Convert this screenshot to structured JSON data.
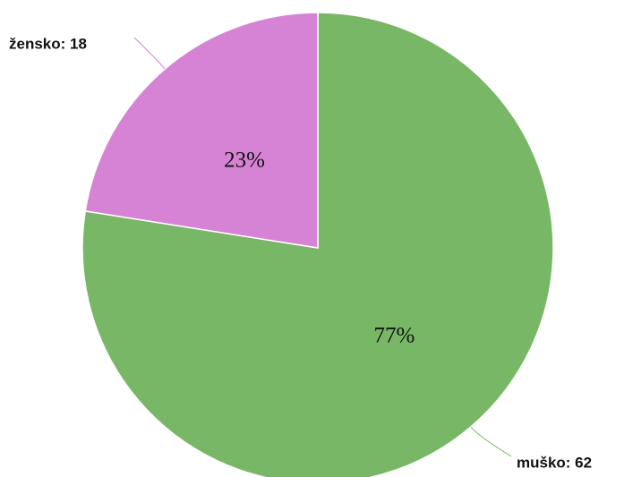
{
  "chart_data": {
    "type": "pie",
    "categories": [
      "muško",
      "žensko"
    ],
    "values": [
      62,
      18
    ],
    "value_labels": [
      "muško: 62",
      "žensko: 18"
    ],
    "percentages": [
      77,
      23
    ],
    "percentage_labels": [
      "77%",
      "23%"
    ],
    "colors": [
      "#77b766",
      "#d783d5"
    ]
  }
}
